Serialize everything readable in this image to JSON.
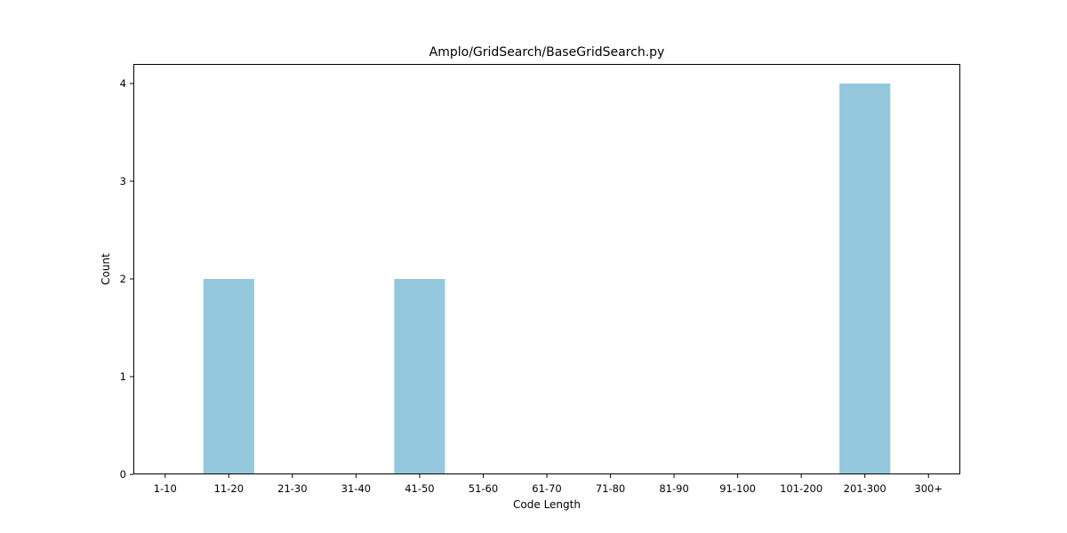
{
  "chart_data": {
    "type": "bar",
    "title": "Amplo/GridSearch/BaseGridSearch.py",
    "xlabel": "Code Length",
    "ylabel": "Count",
    "categories": [
      "1-10",
      "11-20",
      "21-30",
      "31-40",
      "41-50",
      "51-60",
      "61-70",
      "71-80",
      "81-90",
      "91-100",
      "101-200",
      "201-300",
      "300+"
    ],
    "values": [
      0,
      2,
      0,
      0,
      2,
      0,
      0,
      0,
      0,
      0,
      0,
      4,
      0
    ],
    "ylim": [
      0,
      4.2
    ],
    "yticks": [
      0,
      1,
      2,
      3,
      4
    ],
    "grid": false,
    "bar_color": "#95c8dc"
  }
}
